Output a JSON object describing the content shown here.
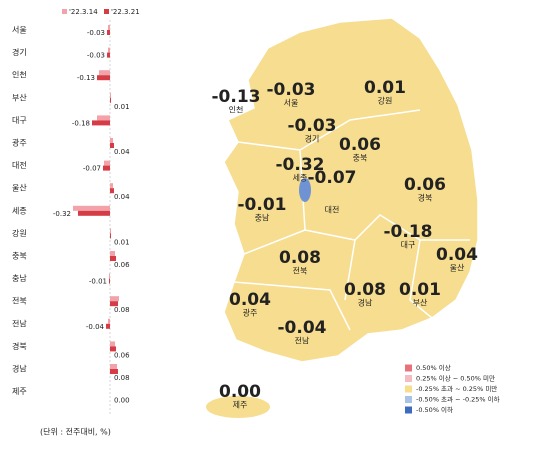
{
  "chart_data": {
    "type": "bar",
    "orientation": "horizontal",
    "categories": [
      "서울",
      "경기",
      "인천",
      "부산",
      "대구",
      "광주",
      "대전",
      "울산",
      "세종",
      "강원",
      "충북",
      "충남",
      "전북",
      "전남",
      "경북",
      "경남",
      "제주"
    ],
    "series": [
      {
        "name": "'22.3.14",
        "color": "#f2a3aa",
        "values": [
          -0.02,
          -0.02,
          -0.11,
          0.01,
          -0.13,
          0.03,
          -0.06,
          0.03,
          -0.37,
          0.01,
          0.05,
          -0.01,
          0.09,
          -0.02,
          0.05,
          0.07,
          0
        ]
      },
      {
        "name": "'22.3.21",
        "color": "#d63c45",
        "values": [
          -0.03,
          -0.03,
          -0.13,
          0.01,
          -0.18,
          0.04,
          -0.07,
          0.04,
          -0.32,
          0.01,
          0.06,
          -0.01,
          0.08,
          -0.04,
          0.06,
          0.08,
          0
        ],
        "value_labels": [
          "-0.03",
          "-0.03",
          "-0.13",
          "0.01",
          "-0.18",
          "0.04",
          "-0.07",
          "0.04",
          "-0.32",
          "0.01",
          "0.06",
          "-0.01",
          "0.08",
          "-0.04",
          "0.06",
          "0.08",
          "0.00"
        ]
      }
    ],
    "xlim": [
      -0.5,
      0.5
    ],
    "unit_note": "(단위 : 전주대비, %)"
  },
  "map": {
    "legend": [
      {
        "label": "0.50% 이상",
        "color": "#e8727c"
      },
      {
        "label": "0.25% 이상 ~ 0.50% 미만",
        "color": "#f4bcc0"
      },
      {
        "label": "-0.25% 초과 ~ 0.25% 미만",
        "color": "#f6dd8f"
      },
      {
        "label": "-0.50% 초과 ~ -0.25% 이하",
        "color": "#a9c3e6"
      },
      {
        "label": "-0.50% 이하",
        "color": "#3c6cc0"
      }
    ]
  }
}
